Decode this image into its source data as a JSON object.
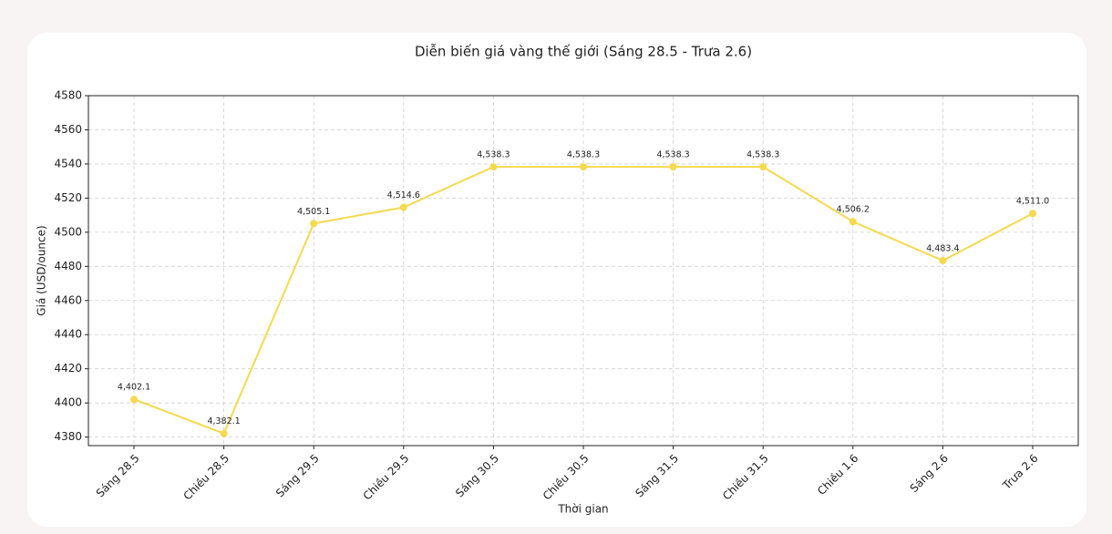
{
  "chart_data": {
    "type": "line",
    "title": "Diễn biến giá vàng thế giới (Sáng 28.5 - Trưa 2.6)",
    "x_label": "Thời gian",
    "y_label": "Giá (USD/ounce)",
    "categories": [
      "Sáng 28.5",
      "Chiều 28.5",
      "Sáng 29.5",
      "Chiều 29.5",
      "Sáng 30.5",
      "Chiều 30.5",
      "Sáng 31.5",
      "Chiều 31.5",
      "Chiều 1.6",
      "Sáng 2.6",
      "Trưa 2.6"
    ],
    "series": [
      {
        "color": "#f5d94e",
        "values": [
          4402.1,
          4382.1,
          4505.1,
          4514.6,
          4538.3,
          4538.3,
          4538.3,
          4538.3,
          4506.2,
          4483.4,
          4511.0
        ],
        "value_labels": [
          "4,402.1",
          "4,382.1",
          "4,505.1",
          "4,514.6",
          "4,538.3",
          "4,538.3",
          "4,538.3",
          "4,538.3",
          "4,506.2",
          "4,483.4",
          "4,511.0"
        ]
      }
    ],
    "ylim": [
      4375,
      4580
    ],
    "yticks": [
      4380,
      4400,
      4420,
      4440,
      4460,
      4480,
      4500,
      4520,
      4540,
      4560,
      4580
    ],
    "grid": true
  }
}
